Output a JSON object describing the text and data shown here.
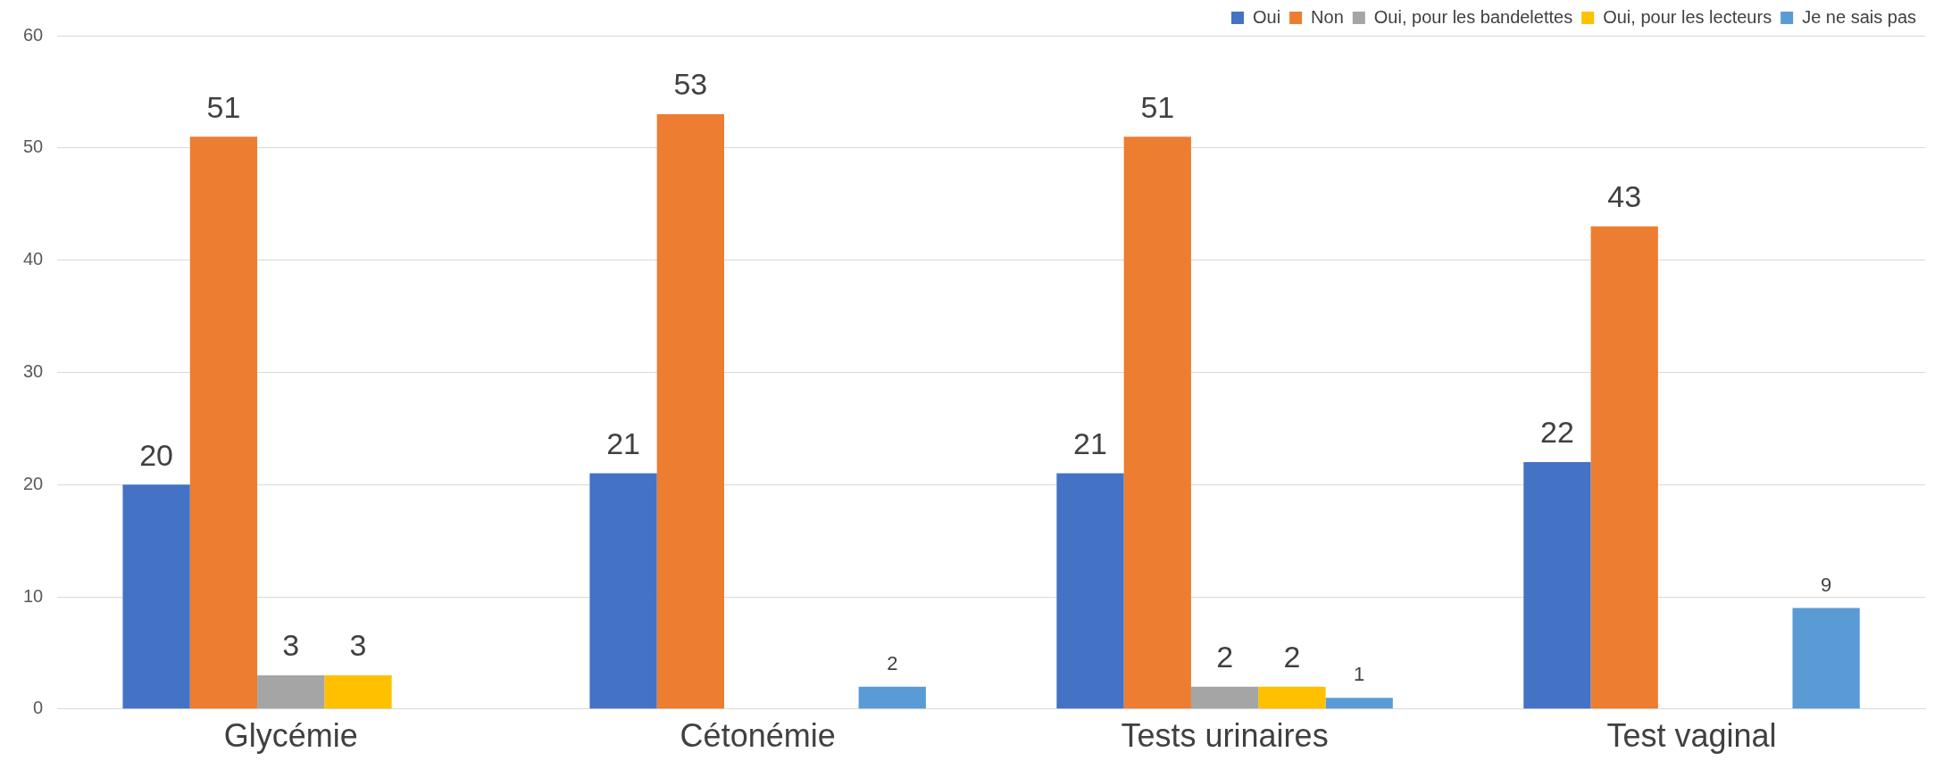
{
  "chart_data": {
    "type": "bar",
    "categories": [
      "Glycémie",
      "Cétonémie",
      "Tests urinaires",
      "Test vaginal"
    ],
    "series": [
      {
        "name": "Oui",
        "color": "#4472c4",
        "values": [
          20,
          21,
          21,
          22
        ]
      },
      {
        "name": "Non",
        "color": "#ed7d31",
        "values": [
          51,
          53,
          51,
          43
        ]
      },
      {
        "name": "Oui, pour les bandelettes",
        "color": "#a5a5a5",
        "values": [
          3,
          null,
          2,
          null
        ]
      },
      {
        "name": "Oui, pour les lecteurs",
        "color": "#ffc000",
        "values": [
          3,
          null,
          2,
          null
        ]
      },
      {
        "name": "Je ne sais pas",
        "color": "#5b9bd5",
        "values": [
          null,
          2,
          1,
          9
        ]
      }
    ],
    "ylim": [
      0,
      60
    ],
    "yticks": [
      0,
      10,
      20,
      30,
      40,
      50,
      60
    ],
    "grid": "y",
    "legend": "top right",
    "data_labels": true
  }
}
